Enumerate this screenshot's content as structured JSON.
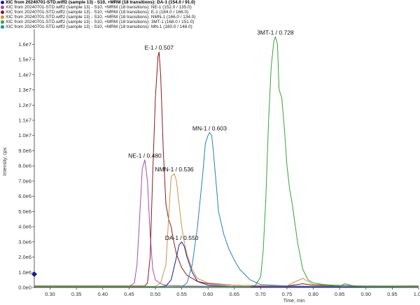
{
  "legend": [
    {
      "text": "XIC from 20240701-STD.wiff2 (sample 13) - S10, +MRM (18 transitions): DA-1 (154.0 / 91.0)",
      "color": "#1a1a8c",
      "active": true
    },
    {
      "text": "XIC from 20240701-STD.wiff2 (sample 13) - S10, +MRM (18 transitions): NE-1 (152.0 / 135.0)",
      "color": "#a64ca6"
    },
    {
      "text": "XIC from 20240701-STD.wiff2 (sample 13) - S10, +MRM (18 transitions): E-1 (184.0 / 166.0)",
      "color": "#8b1a1a"
    },
    {
      "text": "XIC from 20240701-STD.wiff2 (sample 13) - S10, +MRM (18 transitions): NMN-1 (166.0 / 134.0)",
      "color": "#c89448"
    },
    {
      "text": "XIC from 20240701-STD.wiff2 (sample 13) - S10, +MRM (18 transitions): 3MT-1 (168.0 / 151.0)",
      "color": "#3aa03a"
    },
    {
      "text": "XIC from 20240701-STD.wiff2 (sample 13) - S10, +MRM (18 transitions): MN-1 (180.0 / 148.0)",
      "color": "#2a7fb0"
    }
  ],
  "chart_data": {
    "type": "line",
    "xlabel": "Time, min",
    "ylabel": "Intensity, cps",
    "xlim": [
      0.27,
      1.0
    ],
    "ylim": [
      0,
      16800000
    ],
    "grid": false,
    "xticks": [
      0.3,
      0.35,
      0.4,
      0.45,
      0.5,
      0.55,
      0.6,
      0.65,
      0.7,
      0.75,
      0.8,
      0.85,
      0.9,
      0.95,
      1.0
    ],
    "xtick_labels": [
      "0.30",
      "0.35",
      "0.40",
      "0.45",
      "0.50",
      "0.55",
      "0.60",
      "0.65",
      "0.70",
      "0.75",
      "0.80",
      "0.85",
      "0.90",
      "0.95",
      "1.00"
    ],
    "yticks": [
      0,
      1000000,
      2000000,
      3000000,
      4000000,
      5000000,
      6000000,
      7000000,
      8000000,
      9000000,
      10000000,
      11000000,
      12000000,
      13000000,
      14000000,
      15000000,
      16000000
    ],
    "ytick_labels": [
      "0.0e0",
      "1.0e6",
      "2.0e6",
      "3.0e6",
      "4.0e6",
      "5.0e6",
      "6.0e6",
      "7.0e6",
      "8.0e6",
      "9.0e6",
      "1.0e7",
      "1.1e7",
      "1.2e7",
      "1.3e7",
      "1.4e7",
      "1.5e7",
      "1.6e7"
    ],
    "series": [
      {
        "name": "NE-1",
        "color": "#a64ca6",
        "peak_label": "NE-1 / 0.480",
        "x": [
          0.27,
          0.45,
          0.46,
          0.465,
          0.47,
          0.475,
          0.48,
          0.485,
          0.49,
          0.495,
          0.5,
          0.51,
          0.52,
          0.55,
          0.6,
          0.7,
          0.8,
          0.9,
          1.0
        ],
        "y": [
          50000,
          50000,
          300000,
          1500000,
          4500000,
          7800000,
          8400000,
          7000000,
          3500000,
          1200000,
          500000,
          250000,
          150000,
          100000,
          80000,
          70000,
          60000,
          50000,
          50000
        ]
      },
      {
        "name": "E-1",
        "color": "#8b1a1a",
        "peak_label": "E-1 / 0.507",
        "x": [
          0.27,
          0.48,
          0.485,
          0.49,
          0.495,
          0.5,
          0.505,
          0.507,
          0.51,
          0.515,
          0.52,
          0.525,
          0.53,
          0.535,
          0.54,
          0.55,
          0.56,
          0.58,
          0.6,
          0.65,
          0.7,
          0.75,
          0.78,
          0.8,
          0.85,
          0.9,
          1.0
        ],
        "y": [
          100000,
          100000,
          300000,
          2000000,
          7500000,
          12500000,
          15200000,
          15500000,
          14000000,
          9000000,
          5500000,
          4500000,
          4000000,
          3000000,
          2200000,
          1300000,
          800000,
          400000,
          250000,
          150000,
          120000,
          100000,
          250000,
          150000,
          120000,
          100000,
          100000
        ]
      },
      {
        "name": "NMN-1",
        "color": "#c89448",
        "peak_label": "NMN-1 / 0.536",
        "x": [
          0.27,
          0.5,
          0.51,
          0.52,
          0.525,
          0.53,
          0.536,
          0.54,
          0.545,
          0.55,
          0.555,
          0.56,
          0.57,
          0.58,
          0.6,
          0.65,
          0.7,
          0.75,
          0.76,
          0.78,
          0.8,
          0.9,
          1.0
        ],
        "y": [
          80000,
          80000,
          300000,
          1500000,
          4500000,
          7300000,
          7500000,
          7000000,
          5500000,
          4000000,
          3000000,
          2200000,
          1200000,
          600000,
          300000,
          150000,
          120000,
          100000,
          300000,
          600000,
          200000,
          100000,
          80000
        ]
      },
      {
        "name": "DA-1",
        "color": "#1a1a8c",
        "peak_label": "DA-1 / 0.550",
        "x": [
          0.27,
          0.5,
          0.52,
          0.53,
          0.54,
          0.545,
          0.55,
          0.555,
          0.56,
          0.57,
          0.58,
          0.6,
          0.65,
          0.7,
          0.8,
          0.9,
          1.0
        ],
        "y": [
          30000,
          30000,
          100000,
          500000,
          2000000,
          2800000,
          3000000,
          2700000,
          2000000,
          1000000,
          400000,
          150000,
          60000,
          40000,
          30000,
          30000,
          30000
        ]
      },
      {
        "name": "MN-1",
        "color": "#2a7fb0",
        "peak_label": "MN-1 / 0.603",
        "x": [
          0.27,
          0.55,
          0.56,
          0.57,
          0.58,
          0.59,
          0.595,
          0.6,
          0.603,
          0.607,
          0.61,
          0.615,
          0.62,
          0.63,
          0.64,
          0.65,
          0.66,
          0.68,
          0.7,
          0.75,
          0.8,
          0.85,
          0.86,
          0.88,
          0.9,
          1.0
        ],
        "y": [
          50000,
          50000,
          300000,
          1500000,
          4000000,
          7500000,
          9500000,
          10000000,
          10200000,
          10000000,
          9000000,
          7000000,
          5000000,
          3500000,
          2500000,
          1800000,
          1200000,
          500000,
          200000,
          100000,
          80000,
          80000,
          250000,
          80000,
          60000,
          50000
        ]
      },
      {
        "name": "3MT-1",
        "color": "#3aa03a",
        "peak_label": "3MT-1 / 0.728",
        "x": [
          0.27,
          0.68,
          0.69,
          0.7,
          0.705,
          0.71,
          0.715,
          0.72,
          0.725,
          0.728,
          0.732,
          0.735,
          0.74,
          0.745,
          0.75,
          0.755,
          0.76,
          0.77,
          0.78,
          0.79,
          0.8,
          0.82,
          0.85,
          0.9,
          1.0
        ],
        "y": [
          50000,
          50000,
          150000,
          700000,
          2500000,
          6000000,
          11000000,
          14500000,
          16200000,
          16500000,
          16000000,
          13000000,
          12500000,
          10500000,
          8000000,
          6500000,
          5500000,
          3000000,
          1200000,
          500000,
          300000,
          200000,
          120000,
          80000,
          60000
        ]
      }
    ]
  }
}
